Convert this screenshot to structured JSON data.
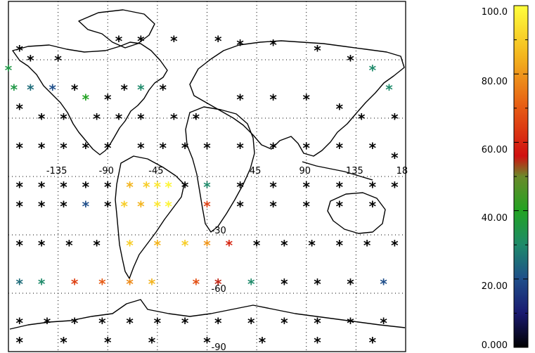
{
  "title_fragment": "",
  "colors": {
    "background": "#ffffff",
    "grid": "#000000",
    "coast": "#000000",
    "star_default": "#000000"
  },
  "colorbar": {
    "labels": [
      "100.0",
      "80.00",
      "60.00",
      "40.00",
      "20.00",
      "0.000"
    ],
    "min": 0,
    "max": 100,
    "stops": [
      {
        "v": 0,
        "c": "#000000"
      },
      {
        "v": 10,
        "c": "#1a1a70"
      },
      {
        "v": 20,
        "c": "#1f4e8a"
      },
      {
        "v": 30,
        "c": "#1e8a6a"
      },
      {
        "v": 40,
        "c": "#22a322"
      },
      {
        "v": 50,
        "c": "#6a8a2a"
      },
      {
        "v": 56,
        "c": "#d01010"
      },
      {
        "v": 70,
        "c": "#e65a14"
      },
      {
        "v": 85,
        "c": "#f3b41e"
      },
      {
        "v": 100,
        "c": "#ffff3c"
      }
    ]
  },
  "map": {
    "lon_labels": [
      "-135",
      "-90",
      "-45",
      "45",
      "90",
      "135",
      "18"
    ],
    "lat_labels": [
      "-30",
      "-60",
      "-90"
    ]
  },
  "chart_data": {
    "type": "scatter",
    "x_range": [
      -180,
      180
    ],
    "y_range": [
      -90,
      90
    ],
    "points": [
      {
        "lon": -170,
        "lat": 65,
        "v": 0
      },
      {
        "lon": -160,
        "lat": 60,
        "v": 0
      },
      {
        "lon": -180,
        "lat": 55,
        "v": 35
      },
      {
        "lon": -135,
        "lat": 60,
        "v": 0
      },
      {
        "lon": -80,
        "lat": 70,
        "v": 0
      },
      {
        "lon": -60,
        "lat": 70,
        "v": 0
      },
      {
        "lon": -30,
        "lat": 70,
        "v": 0
      },
      {
        "lon": 10,
        "lat": 70,
        "v": 0
      },
      {
        "lon": 30,
        "lat": 68,
        "v": 0
      },
      {
        "lon": 60,
        "lat": 68,
        "v": 0
      },
      {
        "lon": 100,
        "lat": 65,
        "v": 0
      },
      {
        "lon": 130,
        "lat": 60,
        "v": 0
      },
      {
        "lon": 150,
        "lat": 55,
        "v": 30
      },
      {
        "lon": 165,
        "lat": 45,
        "v": 30
      },
      {
        "lon": -175,
        "lat": 45,
        "v": 35
      },
      {
        "lon": -160,
        "lat": 45,
        "v": 25
      },
      {
        "lon": -140,
        "lat": 45,
        "v": 20
      },
      {
        "lon": -120,
        "lat": 45,
        "v": 0
      },
      {
        "lon": -110,
        "lat": 40,
        "v": 40
      },
      {
        "lon": -90,
        "lat": 40,
        "v": 0
      },
      {
        "lon": -75,
        "lat": 45,
        "v": 0
      },
      {
        "lon": -60,
        "lat": 45,
        "v": 30
      },
      {
        "lon": -40,
        "lat": 45,
        "v": 0
      },
      {
        "lon": -170,
        "lat": 35,
        "v": 0
      },
      {
        "lon": -150,
        "lat": 30,
        "v": 0
      },
      {
        "lon": -130,
        "lat": 30,
        "v": 0
      },
      {
        "lon": -100,
        "lat": 30,
        "v": 0
      },
      {
        "lon": -80,
        "lat": 30,
        "v": 0
      },
      {
        "lon": -60,
        "lat": 30,
        "v": 0
      },
      {
        "lon": -30,
        "lat": 30,
        "v": 0
      },
      {
        "lon": -10,
        "lat": 30,
        "v": 0
      },
      {
        "lon": 30,
        "lat": 40,
        "v": 0
      },
      {
        "lon": 60,
        "lat": 40,
        "v": 0
      },
      {
        "lon": 90,
        "lat": 40,
        "v": 0
      },
      {
        "lon": 120,
        "lat": 35,
        "v": 0
      },
      {
        "lon": 140,
        "lat": 30,
        "v": 0
      },
      {
        "lon": 170,
        "lat": 30,
        "v": 0
      },
      {
        "lon": -170,
        "lat": 15,
        "v": 0
      },
      {
        "lon": -150,
        "lat": 15,
        "v": 0
      },
      {
        "lon": -130,
        "lat": 15,
        "v": 0
      },
      {
        "lon": -110,
        "lat": 15,
        "v": 0
      },
      {
        "lon": -90,
        "lat": 15,
        "v": 0
      },
      {
        "lon": -60,
        "lat": 15,
        "v": 0
      },
      {
        "lon": -40,
        "lat": 15,
        "v": 0
      },
      {
        "lon": -20,
        "lat": 15,
        "v": 0
      },
      {
        "lon": 0,
        "lat": 15,
        "v": 0
      },
      {
        "lon": 30,
        "lat": 15,
        "v": 0
      },
      {
        "lon": 60,
        "lat": 15,
        "v": 0
      },
      {
        "lon": 90,
        "lat": 15,
        "v": 0
      },
      {
        "lon": 120,
        "lat": 15,
        "v": 0
      },
      {
        "lon": 150,
        "lat": 15,
        "v": 0
      },
      {
        "lon": 170,
        "lat": 10,
        "v": 0
      },
      {
        "lon": -170,
        "lat": -5,
        "v": 0
      },
      {
        "lon": -150,
        "lat": -5,
        "v": 0
      },
      {
        "lon": -130,
        "lat": -5,
        "v": 0
      },
      {
        "lon": -110,
        "lat": -5,
        "v": 0
      },
      {
        "lon": -90,
        "lat": -5,
        "v": 0
      },
      {
        "lon": -70,
        "lat": -5,
        "v": 85
      },
      {
        "lon": -55,
        "lat": -5,
        "v": 90
      },
      {
        "lon": -45,
        "lat": -5,
        "v": 95
      },
      {
        "lon": -35,
        "lat": -5,
        "v": 98
      },
      {
        "lon": -20,
        "lat": -5,
        "v": 0
      },
      {
        "lon": 0,
        "lat": -5,
        "v": 30
      },
      {
        "lon": 30,
        "lat": -5,
        "v": 0
      },
      {
        "lon": 60,
        "lat": -5,
        "v": 0
      },
      {
        "lon": 90,
        "lat": -5,
        "v": 0
      },
      {
        "lon": 120,
        "lat": -5,
        "v": 0
      },
      {
        "lon": 150,
        "lat": -5,
        "v": 0
      },
      {
        "lon": 170,
        "lat": -5,
        "v": 0
      },
      {
        "lon": -170,
        "lat": -15,
        "v": 0
      },
      {
        "lon": -150,
        "lat": -15,
        "v": 0
      },
      {
        "lon": -130,
        "lat": -15,
        "v": 0
      },
      {
        "lon": -110,
        "lat": -15,
        "v": 20
      },
      {
        "lon": -90,
        "lat": -15,
        "v": 0
      },
      {
        "lon": -75,
        "lat": -15,
        "v": 90
      },
      {
        "lon": -60,
        "lat": -15,
        "v": 85
      },
      {
        "lon": -45,
        "lat": -15,
        "v": 95
      },
      {
        "lon": -35,
        "lat": -15,
        "v": 98
      },
      {
        "lon": 0,
        "lat": -15,
        "v": 65
      },
      {
        "lon": 30,
        "lat": -15,
        "v": 0
      },
      {
        "lon": 60,
        "lat": -15,
        "v": 0
      },
      {
        "lon": 90,
        "lat": -15,
        "v": 0
      },
      {
        "lon": 120,
        "lat": -15,
        "v": 0
      },
      {
        "lon": 150,
        "lat": -15,
        "v": 0
      },
      {
        "lon": -170,
        "lat": -35,
        "v": 0
      },
      {
        "lon": -150,
        "lat": -35,
        "v": 0
      },
      {
        "lon": -125,
        "lat": -35,
        "v": 0
      },
      {
        "lon": -100,
        "lat": -35,
        "v": 0
      },
      {
        "lon": -70,
        "lat": -35,
        "v": 90
      },
      {
        "lon": -45,
        "lat": -35,
        "v": 85
      },
      {
        "lon": -20,
        "lat": -35,
        "v": 90
      },
      {
        "lon": 0,
        "lat": -35,
        "v": 80
      },
      {
        "lon": 20,
        "lat": -35,
        "v": 60
      },
      {
        "lon": 45,
        "lat": -35,
        "v": 0
      },
      {
        "lon": 70,
        "lat": -35,
        "v": 0
      },
      {
        "lon": 95,
        "lat": -35,
        "v": 0
      },
      {
        "lon": 120,
        "lat": -35,
        "v": 0
      },
      {
        "lon": 145,
        "lat": -35,
        "v": 0
      },
      {
        "lon": 170,
        "lat": -35,
        "v": 0
      },
      {
        "lon": -170,
        "lat": -55,
        "v": 25
      },
      {
        "lon": -150,
        "lat": -55,
        "v": 30
      },
      {
        "lon": -120,
        "lat": -55,
        "v": 65
      },
      {
        "lon": -95,
        "lat": -55,
        "v": 70
      },
      {
        "lon": -70,
        "lat": -55,
        "v": 78
      },
      {
        "lon": -50,
        "lat": -55,
        "v": 85
      },
      {
        "lon": -10,
        "lat": -55,
        "v": 68
      },
      {
        "lon": 10,
        "lat": -55,
        "v": 55
      },
      {
        "lon": 40,
        "lat": -55,
        "v": 30
      },
      {
        "lon": 70,
        "lat": -55,
        "v": 0
      },
      {
        "lon": 100,
        "lat": -55,
        "v": 0
      },
      {
        "lon": 130,
        "lat": -55,
        "v": 0
      },
      {
        "lon": 160,
        "lat": -55,
        "v": 20
      },
      {
        "lon": -170,
        "lat": -75,
        "v": 0
      },
      {
        "lon": -145,
        "lat": -75,
        "v": 0
      },
      {
        "lon": -120,
        "lat": -75,
        "v": 0
      },
      {
        "lon": -95,
        "lat": -75,
        "v": 0
      },
      {
        "lon": -70,
        "lat": -75,
        "v": 0
      },
      {
        "lon": -45,
        "lat": -75,
        "v": 0
      },
      {
        "lon": -20,
        "lat": -75,
        "v": 0
      },
      {
        "lon": 10,
        "lat": -75,
        "v": 0
      },
      {
        "lon": 40,
        "lat": -75,
        "v": 0
      },
      {
        "lon": 70,
        "lat": -75,
        "v": 0
      },
      {
        "lon": 100,
        "lat": -75,
        "v": 0
      },
      {
        "lon": 130,
        "lat": -75,
        "v": 0
      },
      {
        "lon": 160,
        "lat": -75,
        "v": 0
      },
      {
        "lon": -170,
        "lat": -85,
        "v": 0
      },
      {
        "lon": -130,
        "lat": -85,
        "v": 0
      },
      {
        "lon": -90,
        "lat": -85,
        "v": 0
      },
      {
        "lon": -50,
        "lat": -85,
        "v": 0
      },
      {
        "lon": 0,
        "lat": -85,
        "v": 0
      },
      {
        "lon": 50,
        "lat": -85,
        "v": 0
      },
      {
        "lon": 100,
        "lat": -85,
        "v": 0
      },
      {
        "lon": 150,
        "lat": -85,
        "v": 0
      }
    ]
  }
}
